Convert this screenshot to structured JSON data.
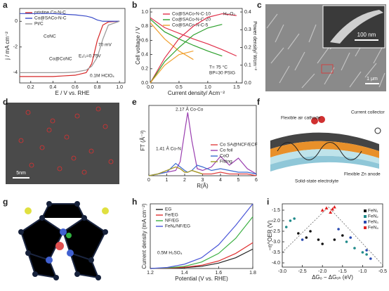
{
  "panel_labels": [
    "a",
    "b",
    "c",
    "d",
    "e",
    "f",
    "g",
    "h",
    "i"
  ],
  "image_panels": {
    "c": {
      "scale_bars": [
        "100 nm",
        "1 μm"
      ]
    },
    "d": {
      "scale_bar": "5nm"
    },
    "f": {
      "labels": [
        "Flexible air cathode",
        "Current collector",
        "Flexible Zn anode",
        "Solid-state electrolyte"
      ]
    }
  },
  "chart_data": [
    {
      "type": "line",
      "x_label": "E / V vs. RHE",
      "y_label": "j / mA cm⁻²",
      "x": [
        0.1,
        0.2,
        0.3,
        0.4,
        0.5,
        0.6,
        0.7,
        0.75,
        0.8,
        0.85,
        0.9,
        1.0
      ],
      "series": [
        {
          "name": "pristine Co-N-C",
          "color": "#d62728",
          "values": [
            -4.3,
            -4.3,
            -4.3,
            -4.3,
            -4.25,
            -4.2,
            -4.0,
            -3.3,
            -1.5,
            -0.3,
            -0.05,
            0
          ]
        },
        {
          "name": "Co@SACo-N-C",
          "color": "#3a4bc8",
          "values": [
            0.6,
            0.6,
            0.6,
            0.6,
            0.55,
            0.5,
            0.4,
            0.3,
            0.1,
            0,
            0,
            0
          ]
        },
        {
          "name": "Pt/C",
          "color": "#999999",
          "values": [
            -4.0,
            -4.0,
            -4.0,
            -4.0,
            -4.0,
            -3.95,
            -3.8,
            -3.5,
            -2.8,
            -1.4,
            -0.3,
            0
          ]
        }
      ],
      "xlim": [
        0.1,
        1.05
      ],
      "xticks": [
        0.2,
        0.4,
        0.6,
        0.8,
        {
          "value": 1,
          "label": "1.0"
        }
      ],
      "ylim": [
        -4.8,
        1
      ],
      "yticks": [
        -4,
        -2,
        0
      ],
      "annotations": [
        "CoNC",
        "Co@CoNC",
        "70 mV",
        "E₁/₂=0.75V",
        "0.1M HClO₄"
      ]
    },
    {
      "type": "line",
      "x_label": "Current density/ Acm⁻²",
      "y_label": "Cell voltage / V",
      "y2_label": "Power density/ Wcm⁻²",
      "x": [
        0,
        0.25,
        0.5,
        0.75,
        1.0,
        1.25,
        1.5
      ],
      "series": [
        {
          "name": "Co@SACo-N-C-10",
          "color": "#e0304a",
          "values": [
            0.92,
            0.78,
            0.7,
            0.62,
            0.55,
            0.47,
            0.38
          ]
        },
        {
          "name": "Co@SACo-N-C-20",
          "color": "#2ca02c",
          "values": [
            0.9,
            0.72,
            0.62,
            0.53,
            0.45,
            0.38,
            null
          ]
        },
        {
          "name": "Co@SACo-N-C-5",
          "color": "#f0a030",
          "values": [
            0.85,
            0.62,
            0.45,
            0.33,
            null,
            null,
            null
          ]
        },
        {
          "color": "#e0304a",
          "axis": "y2",
          "values": [
            0,
            0.14,
            0.25,
            0.32,
            0.37,
            0.39,
            0.38
          ]
        },
        {
          "color": "#2ca02c",
          "axis": "y2",
          "values": [
            0,
            0.12,
            0.2,
            0.27,
            0.31,
            0.33,
            null
          ]
        },
        {
          "color": "#f0a030",
          "axis": "y2",
          "values": [
            0,
            0.1,
            0.16,
            0.18,
            null,
            null,
            null
          ]
        }
      ],
      "xlim": [
        0,
        1.6
      ],
      "xticks": [
        {
          "value": 0,
          "label": "0.0"
        },
        0.5,
        {
          "value": 1,
          "label": "1.0"
        },
        1.5
      ],
      "ylim": [
        0,
        1.05
      ],
      "yticks": [
        {
          "value": 0,
          "label": "0.0"
        },
        0.2,
        0.4,
        0.6,
        0.8,
        {
          "value": 1,
          "label": "1.0"
        }
      ],
      "y2lim": [
        0,
        0.42
      ],
      "y2ticks": [
        {
          "value": 0,
          "label": "0.0"
        },
        0.1,
        0.2,
        0.3,
        0.4
      ],
      "annotations": [
        "H₂-O₂",
        "T= 75 °C",
        "BP=30 PSIG"
      ]
    },
    {
      "type": "line",
      "x_label": "R(Å)",
      "y_label": "FT (Å⁻³)",
      "x": [
        0,
        0.5,
        1,
        1.5,
        1.75,
        2,
        2.17,
        2.4,
        2.7,
        3,
        3.5,
        4,
        4.5,
        5,
        5.5,
        6
      ],
      "series": [
        {
          "name": "Co SA@NCF/ECF",
          "color": "#e04040",
          "values": [
            0,
            1,
            3,
            5,
            4,
            2,
            2,
            3,
            2,
            1,
            1,
            2,
            1,
            1,
            1,
            0
          ]
        },
        {
          "name": "Co foil",
          "color": "#9a3fb0",
          "values": [
            0,
            1,
            2,
            3,
            8,
            25,
            36,
            20,
            4,
            3,
            5,
            11,
            6,
            10,
            4,
            1
          ]
        },
        {
          "name": "CoO",
          "color": "#3a6ad0",
          "values": [
            0,
            1,
            2,
            7,
            5,
            3,
            2,
            3,
            6,
            5,
            3,
            4,
            3,
            2,
            2,
            1
          ]
        },
        {
          "name": "Fitting",
          "color": "#a0a020",
          "values": [
            0,
            1,
            3,
            5,
            4,
            2,
            2,
            3,
            2,
            1,
            null,
            null,
            null,
            null,
            null,
            null
          ]
        }
      ],
      "xlim": [
        0,
        6
      ],
      "xticks": [
        0,
        1,
        2,
        3,
        4,
        5,
        6
      ],
      "ylim": [
        0,
        40
      ],
      "annotations": [
        "2.17 Å Co-Co",
        "1.41 Å Co-N"
      ]
    },
    {
      "type": "line",
      "x_label": "Potential (V vs. RHE)",
      "y_label": "Current density (mA cm⁻²)",
      "x": [
        1.2,
        1.3,
        1.4,
        1.5,
        1.6,
        1.7,
        1.8
      ],
      "series": [
        {
          "name": "EG",
          "color": "#222222",
          "values": [
            0,
            0.1,
            0.4,
            1,
            2.5,
            5,
            9
          ]
        },
        {
          "name": "Fe/EG",
          "color": "#e03030",
          "values": [
            0,
            0.2,
            0.6,
            1.5,
            3.5,
            7,
            12
          ]
        },
        {
          "name": "NF/EG",
          "color": "#3cb043",
          "values": [
            0,
            0.3,
            1,
            3,
            7,
            14,
            24
          ]
        },
        {
          "name": "FeNₓ/NF/EG",
          "color": "#4a56d8",
          "values": [
            0,
            0.5,
            2,
            5,
            11,
            20,
            30
          ]
        }
      ],
      "xlim": [
        1.2,
        1.8
      ],
      "xticks": [
        1.2,
        1.4,
        1.6,
        1.8
      ],
      "ylim": [
        0,
        30
      ],
      "annotations": [
        "0.5M H₂SO₄"
      ]
    },
    {
      "type": "scatter",
      "x_label": "ΔGₒ − ΔGₒₕ (eV)",
      "y_label": "−η^OER (V)",
      "series": [
        {
          "name": "FeN₁",
          "color": "#111111",
          "x": [
            -2.6,
            -2.4,
            -2.3,
            -2.1,
            -2.0,
            -1.7,
            -1.5
          ],
          "values": [
            -2.6,
            -2.8,
            -2.5,
            -2.9,
            -3.1,
            -2.9,
            -2.7
          ]
        },
        {
          "name": "FeN₂",
          "color": "#1f8a8a",
          "x": [
            -2.9,
            -2.8,
            -2.7,
            -1.4,
            -1.2,
            -1.0,
            -0.9
          ],
          "values": [
            -2.3,
            -2.0,
            -1.9,
            -3.0,
            -3.3,
            -3.5,
            -3.6
          ]
        },
        {
          "name": "FeN₃",
          "color": "#2a4ab0",
          "x": [
            -2.5,
            -1.6,
            -1.3,
            -0.9,
            -0.8
          ],
          "values": [
            -2.9,
            -2.4,
            -2.8,
            -3.4,
            -3.8
          ]
        },
        {
          "name": "FeN₄",
          "color": "#e02020",
          "marker": "triangle",
          "x": [
            -2.0,
            -1.9,
            -1.8,
            -1.75,
            -1.7
          ],
          "values": [
            -1.5,
            -1.4,
            -1.6,
            -1.45,
            -1.35
          ]
        }
      ],
      "xlim": [
        -3.0,
        -0.5
      ],
      "xticks": [
        {
          "value": -3,
          "label": "-3.0"
        },
        -2.5,
        {
          "value": -2,
          "label": "-2.0"
        },
        -1.5,
        {
          "value": -1,
          "label": "-1.0"
        },
        -0.5
      ],
      "ylim": [
        -4.2,
        -1.2
      ],
      "yticks": [
        -1.5,
        {
          "value": -2,
          "label": "-2.0"
        },
        -2.5,
        {
          "value": -3,
          "label": "-3.0"
        },
        -3.5,
        {
          "value": -4,
          "label": "-4.0"
        }
      ]
    }
  ]
}
